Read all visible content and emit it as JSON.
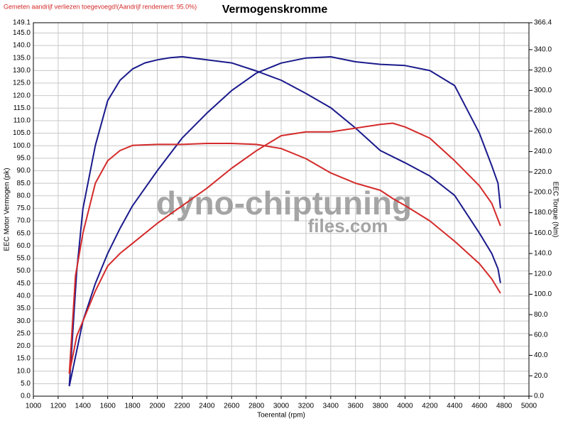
{
  "chart_data": {
    "type": "line",
    "title": "Vermogenskromme",
    "subtitle": "Gemeten aandrijf verliezen toegevoegd!(Aandrijf rendement: 95.0%)",
    "xlabel": "Toerental (rpm)",
    "ylabel": "EEC Motor Vermogen (pk)",
    "y2label": "EEC Torque (Nm)",
    "watermark": [
      "dyno-chiptuning",
      "files.com"
    ],
    "grid": true,
    "xlim": [
      1000,
      5000
    ],
    "xticks": [
      1000,
      1200,
      1400,
      1600,
      1800,
      2000,
      2200,
      2400,
      2600,
      2800,
      3000,
      3200,
      3400,
      3600,
      3800,
      4000,
      4200,
      4400,
      4600,
      4800,
      5000
    ],
    "ylim": [
      0,
      149.1
    ],
    "yticks": [
      {
        "value": 0,
        "label": "0.0"
      },
      {
        "value": 5,
        "label": "5.0"
      },
      {
        "value": 10,
        "label": "10.0"
      },
      {
        "value": 15,
        "label": "15.0"
      },
      {
        "value": 20,
        "label": "20.0"
      },
      {
        "value": 25,
        "label": "25.0"
      },
      {
        "value": 30,
        "label": "30.0"
      },
      {
        "value": 35,
        "label": "35.0"
      },
      {
        "value": 40,
        "label": "40.0"
      },
      {
        "value": 45,
        "label": "45.0"
      },
      {
        "value": 50,
        "label": "50.0"
      },
      {
        "value": 55,
        "label": "55.0"
      },
      {
        "value": 60,
        "label": "60.0"
      },
      {
        "value": 65,
        "label": "65.0"
      },
      {
        "value": 70,
        "label": "70.0"
      },
      {
        "value": 75,
        "label": "75.0"
      },
      {
        "value": 80,
        "label": "80.0"
      },
      {
        "value": 85,
        "label": "85.0"
      },
      {
        "value": 90,
        "label": "90.0"
      },
      {
        "value": 95,
        "label": "95.0"
      },
      {
        "value": 100,
        "label": "100.0"
      },
      {
        "value": 105,
        "label": "105.0"
      },
      {
        "value": 110,
        "label": "110.0"
      },
      {
        "value": 115,
        "label": "115.0"
      },
      {
        "value": 120,
        "label": "120.0"
      },
      {
        "value": 125,
        "label": "125.0"
      },
      {
        "value": 130,
        "label": "130.0"
      },
      {
        "value": 135,
        "label": "135.0"
      },
      {
        "value": 140,
        "label": "140.0"
      },
      {
        "value": 145,
        "label": "145.0"
      },
      149.1
    ],
    "y2lim": [
      0,
      366.4
    ],
    "y2ticks": [
      {
        "value": 0,
        "label": "0.0"
      },
      {
        "value": 20,
        "label": "20.0"
      },
      {
        "value": 40,
        "label": "40.0"
      },
      {
        "value": 60,
        "label": "60.0"
      },
      {
        "value": 80,
        "label": "80.0"
      },
      {
        "value": 100,
        "label": "100.0"
      },
      {
        "value": 120,
        "label": "120.0"
      },
      {
        "value": 140,
        "label": "140.0"
      },
      {
        "value": 160,
        "label": "160.0"
      },
      {
        "value": 180,
        "label": "180.0"
      },
      {
        "value": 200,
        "label": "200.0"
      },
      {
        "value": 220,
        "label": "220.0"
      },
      {
        "value": 240,
        "label": "240.0"
      },
      {
        "value": 260,
        "label": "260.0"
      },
      {
        "value": 280,
        "label": "280.0"
      },
      {
        "value": 300,
        "label": "300.0"
      },
      {
        "value": 320,
        "label": "320.0"
      },
      {
        "value": 340,
        "label": "340.0"
      },
      366.4
    ],
    "series": [
      {
        "color": "#1a1a8c",
        "axis": "y2",
        "x": [
          1290,
          1350,
          1400,
          1500,
          1600,
          1700,
          1800,
          1900,
          2000,
          2100,
          2200,
          2400,
          2600,
          2800,
          3000,
          3200,
          3400,
          3600,
          3800,
          4000,
          4200,
          4400,
          4600,
          4700,
          4750,
          4770
        ],
        "values": [
          10,
          123,
          184,
          246,
          290,
          310,
          321,
          327,
          330,
          332,
          333,
          330,
          327,
          319,
          310,
          297,
          283,
          263,
          241,
          229,
          216,
          197,
          160,
          140,
          125,
          111
        ]
      },
      {
        "color": "#1a1a8c",
        "x": [
          1290,
          1400,
          1500,
          1600,
          1700,
          1800,
          2000,
          2200,
          2400,
          2600,
          2800,
          3000,
          3200,
          3400,
          3600,
          3800,
          4000,
          4200,
          4400,
          4600,
          4700,
          4750,
          4770
        ],
        "values": [
          4,
          30,
          45,
          57,
          67,
          76,
          90,
          103,
          113,
          122,
          129,
          133,
          135,
          135.5,
          133.5,
          132.5,
          132,
          130,
          124,
          105,
          92,
          85,
          75
        ]
      },
      {
        "color": "#d42a2a",
        "axis": "y2",
        "x": [
          1290,
          1340,
          1400,
          1500,
          1600,
          1700,
          1800,
          2000,
          2200,
          2400,
          2600,
          2800,
          3000,
          3200,
          3400,
          3600,
          3800,
          3900,
          4000,
          4200,
          4400,
          4600,
          4700,
          4770
        ],
        "values": [
          22,
          118,
          160,
          209,
          231,
          241,
          246,
          247,
          247,
          248,
          248,
          247,
          243,
          233,
          219,
          209,
          202,
          194,
          187,
          172,
          152,
          130,
          115,
          101
        ]
      },
      {
        "color": "#d42a2a",
        "x": [
          1290,
          1350,
          1400,
          1500,
          1600,
          1700,
          1800,
          2000,
          2200,
          2400,
          2600,
          2800,
          3000,
          3200,
          3400,
          3600,
          3800,
          3900,
          4000,
          4200,
          4400,
          4600,
          4700,
          4770
        ],
        "values": [
          9,
          24,
          30,
          42,
          52,
          57,
          61,
          69,
          76,
          83,
          91,
          98,
          104,
          105.5,
          105.5,
          107,
          108.5,
          109,
          107.5,
          103,
          94,
          84,
          77,
          68
        ]
      }
    ]
  }
}
